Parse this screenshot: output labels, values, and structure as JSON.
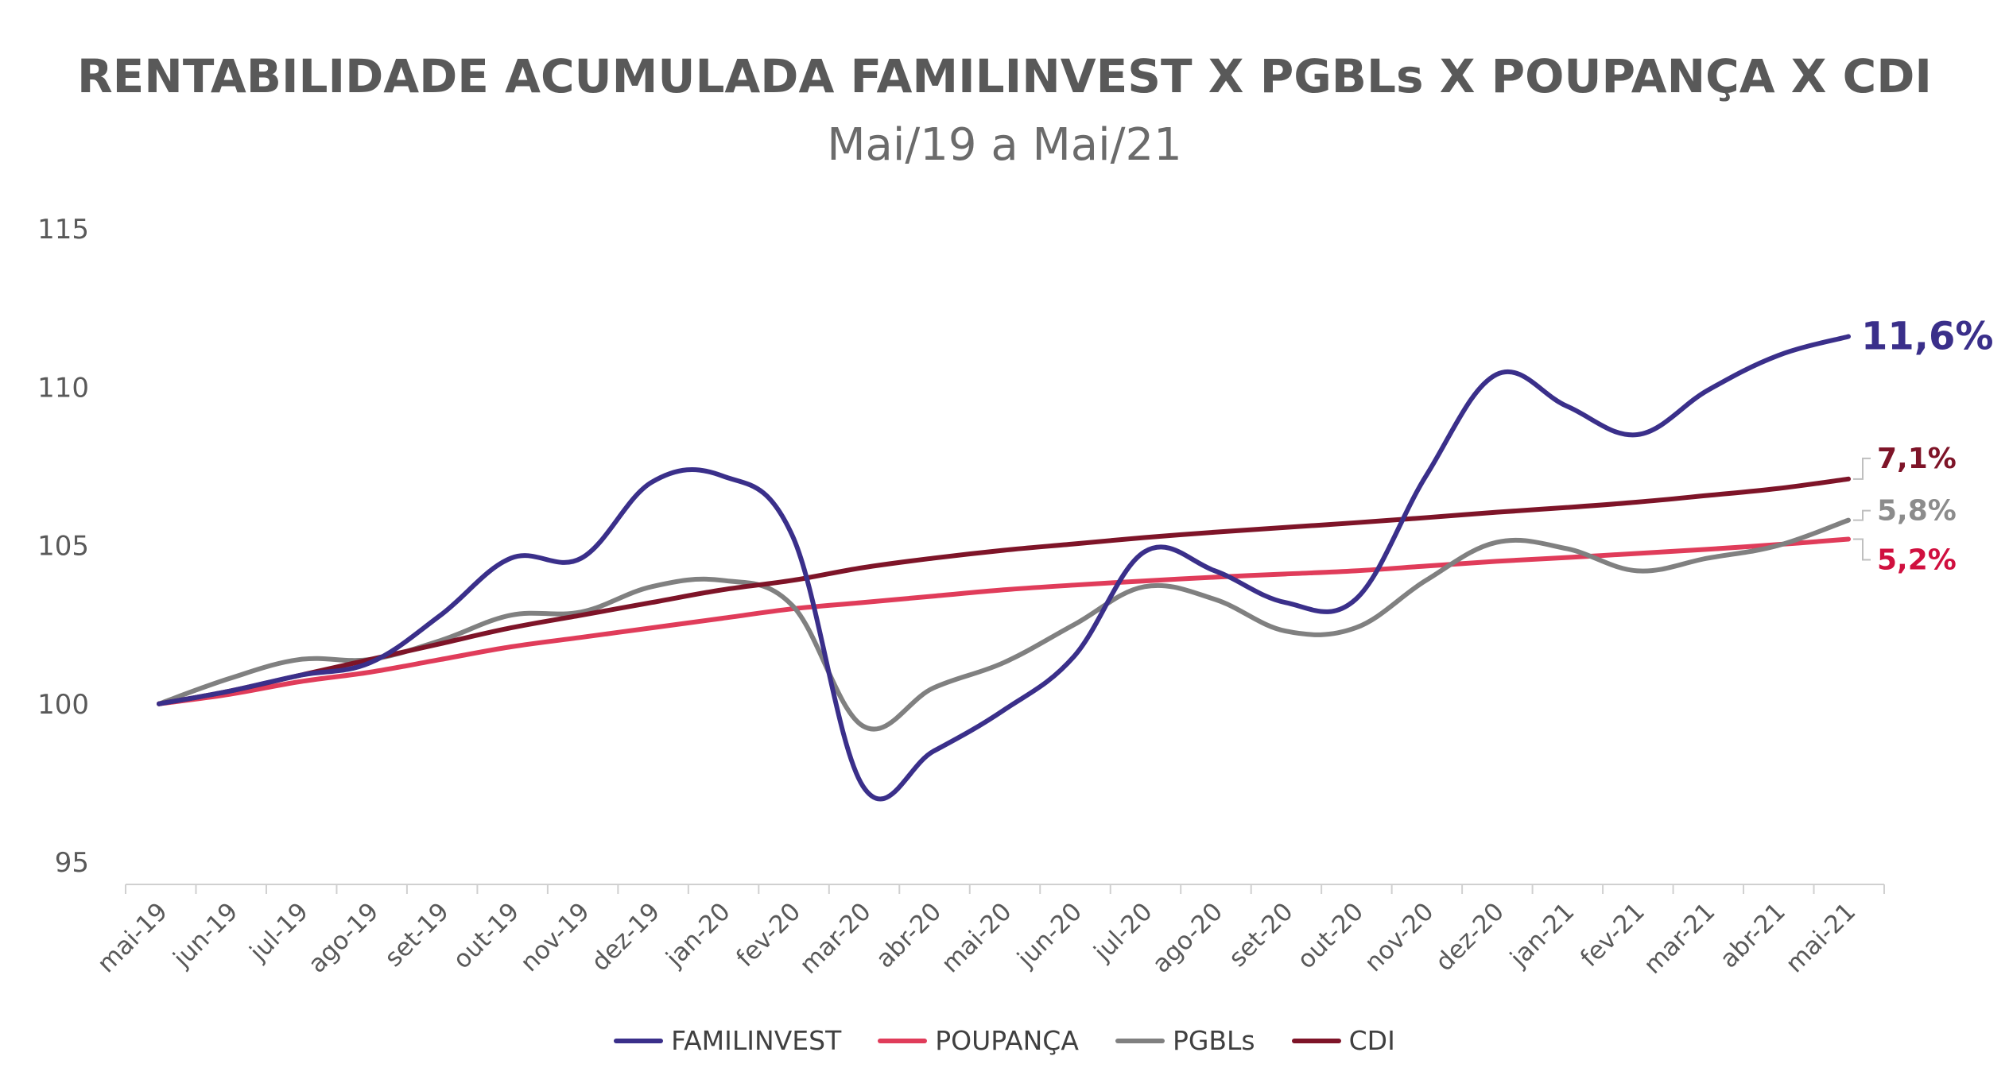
{
  "chart_data": {
    "type": "line",
    "title": "RENTABILIDADE ACUMULADA FAMILINVEST X PGBLs X POUPANÇA X CDI",
    "subtitle": "Mai/19 a Mai/21",
    "xlabel": "",
    "ylabel": "",
    "ylim": [
      95,
      115
    ],
    "yticks": [
      95,
      100,
      105,
      110,
      115
    ],
    "grid": false,
    "legend_position": "bottom",
    "categories": [
      "mai-19",
      "jun-19",
      "jul-19",
      "ago-19",
      "set-19",
      "out-19",
      "nov-19",
      "dez-19",
      "jan-20",
      "fev-20",
      "mar-20",
      "abr-20",
      "mai-20",
      "jun-20",
      "jul-20",
      "ago-20",
      "set-20",
      "out-20",
      "nov-20",
      "dez-20",
      "jan-21",
      "fev-21",
      "mar-21",
      "abr-21",
      "mai-21"
    ],
    "series": [
      {
        "name": "FAMILINVEST",
        "color": "#3a2f8a",
        "values": [
          100,
          100.4,
          100.9,
          101.3,
          102.8,
          104.6,
          104.6,
          107.0,
          107.2,
          105.3,
          97.4,
          98.5,
          99.8,
          101.5,
          104.8,
          104.2,
          103.2,
          103.3,
          107.2,
          110.4,
          109.4,
          108.5,
          109.9,
          111.0,
          111.6
        ],
        "end_label": "11,6%",
        "end_label_color": "#3a2f8a"
      },
      {
        "name": "POUPANÇA",
        "color": "#e03c5a",
        "values": [
          100,
          100.3,
          100.7,
          101.0,
          101.4,
          101.8,
          102.1,
          102.4,
          102.7,
          103.0,
          103.2,
          103.4,
          103.6,
          103.75,
          103.88,
          104.0,
          104.1,
          104.2,
          104.35,
          104.5,
          104.62,
          104.75,
          104.88,
          105.03,
          105.2
        ],
        "end_label": "5,2%",
        "end_label_color": "#d0103f"
      },
      {
        "name": "PGBLs",
        "color": "#808080",
        "values": [
          100,
          100.8,
          101.4,
          101.4,
          102.0,
          102.8,
          102.9,
          103.7,
          103.9,
          103.1,
          99.3,
          100.5,
          101.3,
          102.5,
          103.7,
          103.3,
          102.3,
          102.4,
          103.9,
          105.1,
          104.9,
          104.2,
          104.6,
          105.0,
          105.8
        ],
        "end_label": "5,8%",
        "end_label_color": "#8c8c8c"
      },
      {
        "name": "CDI",
        "color": "#7e1428",
        "values": [
          100,
          100.4,
          100.9,
          101.4,
          101.9,
          102.4,
          102.8,
          103.2,
          103.6,
          103.9,
          104.3,
          104.6,
          104.85,
          105.05,
          105.25,
          105.42,
          105.57,
          105.72,
          105.88,
          106.05,
          106.2,
          106.37,
          106.58,
          106.8,
          107.1
        ],
        "end_label": "7,1%",
        "end_label_color": "#7e1428"
      }
    ]
  }
}
